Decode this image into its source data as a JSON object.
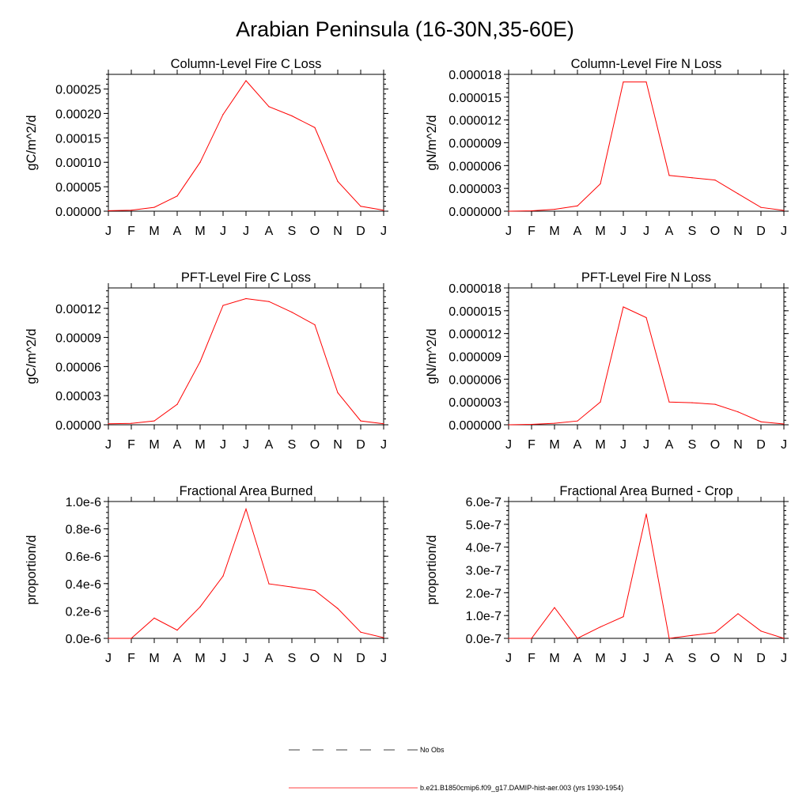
{
  "title": "Arabian Peninsula (16-30N,35-60E)",
  "months": [
    "J",
    "F",
    "M",
    "A",
    "M",
    "J",
    "J",
    "A",
    "S",
    "O",
    "N",
    "D",
    "J"
  ],
  "colors": {
    "model": "#ff0000",
    "obs": "#000000"
  },
  "legend": {
    "obs_label": "No Obs",
    "model_label": "b.e21.B1850cmip6.f09_g17.DAMIP-hist-aer.003 (yrs 1930-1954)"
  },
  "chart_data": [
    {
      "type": "line",
      "title": "Column-Level Fire C Loss",
      "ylabel": "gC/m^2/d",
      "ylim": [
        0,
        0.00028
      ],
      "yticks": [
        0,
        5e-05,
        0.0001,
        0.00015,
        0.0002,
        0.00025
      ],
      "ytick_labels": [
        "0.00000",
        "0.00005",
        "0.00010",
        "0.00015",
        "0.00020",
        "0.00025"
      ],
      "categories": [
        "J",
        "F",
        "M",
        "A",
        "M",
        "J",
        "J",
        "A",
        "S",
        "O",
        "N",
        "D",
        "J"
      ],
      "values": [
        1e-06,
        2e-06,
        8e-06,
        3.1e-05,
        0.0001,
        0.000198,
        0.000267,
        0.000214,
        0.000195,
        0.000171,
        6.1e-05,
        1e-05,
        2e-06
      ]
    },
    {
      "type": "line",
      "title": "Column-Level Fire N Loss",
      "ylabel": "gN/m^2/d",
      "ylim": [
        0,
        1.8e-05
      ],
      "yticks": [
        0,
        3e-06,
        6e-06,
        9e-06,
        1.2e-05,
        1.5e-05,
        1.8e-05
      ],
      "ytick_labels": [
        "0.000000",
        "0.000003",
        "0.000006",
        "0.000009",
        "0.000012",
        "0.000015",
        "0.000018"
      ],
      "categories": [
        "J",
        "F",
        "M",
        "A",
        "M",
        "J",
        "J",
        "A",
        "S",
        "O",
        "N",
        "D",
        "J"
      ],
      "values": [
        0.0,
        5e-08,
        2.5e-07,
        7e-07,
        3.6e-06,
        1.7e-05,
        1.7e-05,
        4.7e-06,
        4.4e-06,
        4.1e-06,
        2.3e-06,
        5e-07,
        1e-07
      ]
    },
    {
      "type": "line",
      "title": "PFT-Level Fire C Loss",
      "ylabel": "gC/m^2/d",
      "ylim": [
        0,
        0.000141
      ],
      "yticks": [
        0,
        3e-05,
        6e-05,
        9e-05,
        0.00012
      ],
      "ytick_labels": [
        "0.00000",
        "0.00003",
        "0.00006",
        "0.00009",
        "0.00012"
      ],
      "categories": [
        "J",
        "F",
        "M",
        "A",
        "M",
        "J",
        "J",
        "A",
        "S",
        "O",
        "N",
        "D",
        "J"
      ],
      "values": [
        1e-06,
        1.5e-06,
        4e-06,
        2.1e-05,
        6.5e-05,
        0.000123,
        0.00013,
        0.000127,
        0.000116,
        0.000103,
        3.3e-05,
        4e-06,
        1e-06
      ]
    },
    {
      "type": "line",
      "title": "PFT-Level Fire N Loss",
      "ylabel": "gN/m^2/d",
      "ylim": [
        0,
        1.8e-05
      ],
      "yticks": [
        0,
        3e-06,
        6e-06,
        9e-06,
        1.2e-05,
        1.5e-05,
        1.8e-05
      ],
      "ytick_labels": [
        "0.000000",
        "0.000003",
        "0.000006",
        "0.000009",
        "0.000012",
        "0.000015",
        "0.000018"
      ],
      "categories": [
        "J",
        "F",
        "M",
        "A",
        "M",
        "J",
        "J",
        "A",
        "S",
        "O",
        "N",
        "D",
        "J"
      ],
      "values": [
        0.0,
        5e-08,
        2e-07,
        5e-07,
        3e-06,
        1.55e-05,
        1.41e-05,
        3e-06,
        2.9e-06,
        2.7e-06,
        1.7e-06,
        4e-07,
        1e-07
      ]
    },
    {
      "type": "line",
      "title": "Fractional Area Burned",
      "ylabel": "proportion/d",
      "ylim": [
        0,
        1e-06
      ],
      "yticks": [
        0,
        2e-07,
        4e-07,
        6e-07,
        8e-07,
        1e-06
      ],
      "ytick_labels": [
        "0.0e-6",
        "0.2e-6",
        "0.4e-6",
        "0.6e-6",
        "0.8e-6",
        "1.0e-6"
      ],
      "categories": [
        "J",
        "F",
        "M",
        "A",
        "M",
        "J",
        "J",
        "A",
        "S",
        "O",
        "N",
        "D",
        "J"
      ],
      "values": [
        0.0,
        0.0,
        1.48e-07,
        6e-08,
        2.3e-07,
        4.55e-07,
        9.45e-07,
        3.98e-07,
        3.75e-07,
        3.5e-07,
        2.18e-07,
        4.5e-08,
        5e-09
      ]
    },
    {
      "type": "line",
      "title": "Fractional Area Burned - Crop",
      "ylabel": "proportion/d",
      "ylim": [
        0,
        6e-07
      ],
      "yticks": [
        0,
        1e-07,
        2e-07,
        3e-07,
        4e-07,
        5e-07,
        6e-07
      ],
      "ytick_labels": [
        "0.0e-7",
        "1.0e-7",
        "2.0e-7",
        "3.0e-7",
        "4.0e-7",
        "5.0e-7",
        "6.0e-7"
      ],
      "categories": [
        "J",
        "F",
        "M",
        "A",
        "M",
        "J",
        "J",
        "A",
        "S",
        "O",
        "N",
        "D",
        "J"
      ],
      "values": [
        0.0,
        0.0,
        1.35e-07,
        0.0,
        5e-08,
        9.5e-08,
        5.45e-07,
        0.0,
        1.3e-08,
        2.5e-08,
        1.08e-07,
        3.2e-08,
        0.0
      ]
    }
  ]
}
